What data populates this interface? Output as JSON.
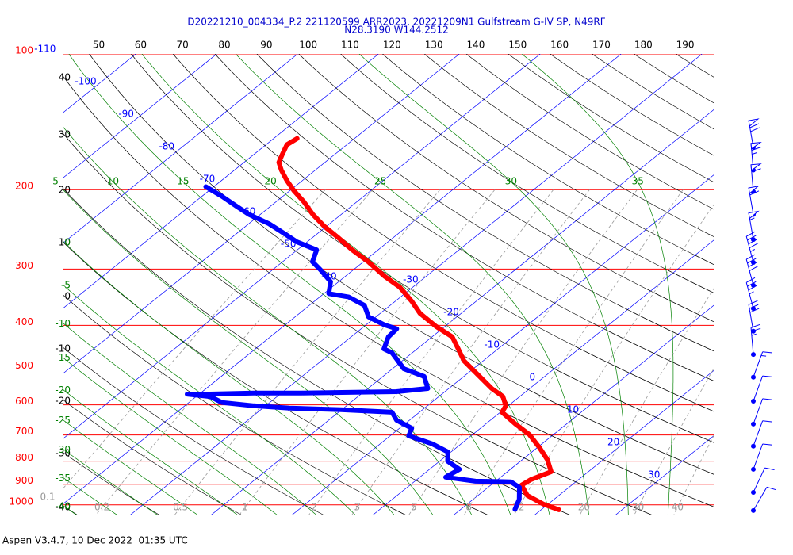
{
  "chart_data": {
    "type": "skewt",
    "title": "D20221210_004334_P.2 221120599 ARR2023, 20221209N1 Gulfstream G-IV SP, N49RF",
    "subtitle": "N28.3190 W144.2512",
    "footer": "Aspen V3.4.7, 10 Dec 2022  01:35 UTC",
    "ylim": [
      100,
      1055
    ],
    "log_y": true,
    "yticks": [
      100,
      200,
      300,
      400,
      500,
      600,
      700,
      800,
      900,
      1000
    ],
    "grid_color": "#ff0000",
    "xlim": [
      -38.2,
      42.2
    ],
    "isotherms": {
      "color": "#0000ff",
      "values": [
        -110,
        -100,
        -90,
        -80,
        -70,
        -60,
        -50,
        -40,
        -30,
        -20,
        -10,
        0,
        10,
        20,
        30
      ]
    },
    "dry_adiabats": {
      "color": "#000000",
      "top": [
        50,
        60,
        70,
        80,
        90,
        100,
        110,
        120,
        130,
        140,
        150,
        160,
        170,
        180,
        190
      ],
      "left": [
        40,
        30,
        20,
        10,
        0,
        -10,
        -20,
        -30,
        -40
      ]
    },
    "moist_adiabats": {
      "color": "#008000",
      "top": [
        5,
        10,
        15,
        20,
        25,
        30,
        35
      ],
      "left": [
        0,
        -5,
        -10,
        -15,
        -20,
        -25,
        -30,
        -35,
        -40
      ]
    },
    "mixing_ratios": {
      "color": "#999999",
      "values": [
        0.1,
        0.2,
        0.5,
        1,
        2,
        3,
        5,
        8,
        12,
        20,
        30,
        40
      ]
    },
    "series": [
      {
        "color": "#ff0000",
        "pressure": [
          154,
          159,
          167,
          174,
          181,
          191,
          201,
          213,
          227,
          241,
          256,
          272,
          289,
          311,
          329,
          354,
          376,
          402,
          424,
          451,
          479,
          509,
          552,
          575,
          603,
          623,
          662,
          698,
          747,
          794,
          844,
          879,
          904,
          953,
          996,
          1025
        ],
        "values": [
          -67.1,
          -67.4,
          -66.5,
          -65.7,
          -64.2,
          -61.9,
          -59.5,
          -56.5,
          -53.5,
          -50.3,
          -46.7,
          -43.2,
          -39.4,
          -35.2,
          -31.6,
          -27.9,
          -25.1,
          -21.1,
          -17.5,
          -14.9,
          -12.4,
          -9.1,
          -4.7,
          -2.1,
          -0.3,
          0.2,
          3.7,
          7.0,
          10.3,
          13.1,
          15.4,
          14.1,
          13.8,
          16.1,
          19.4,
          22.2
        ]
      },
      {
        "color": "#0000ff",
        "pressure": [
          197,
          207,
          218,
          227,
          238,
          251,
          261,
          272,
          289,
          301,
          320,
          340,
          346,
          361,
          383,
          399,
          407,
          424,
          451,
          460,
          499,
          519,
          552,
          561,
          563,
          565,
          565,
          568,
          568,
          575,
          593,
          603,
          610,
          615,
          623,
          649,
          676,
          703,
          732,
          763,
          800,
          834,
          868,
          886,
          889,
          915,
          972,
          1023
        ],
        "values": [
          -71.0,
          -67.5,
          -64.1,
          -61.4,
          -57.5,
          -53.9,
          -51.3,
          -47.6,
          -46.3,
          -44.1,
          -41.0,
          -39.4,
          -36.4,
          -33.2,
          -30.9,
          -27.7,
          -25.6,
          -25.4,
          -24.1,
          -22.5,
          -18.6,
          -14.9,
          -12.6,
          -16.0,
          -21.8,
          -27.5,
          -33.4,
          -39.2,
          -41.5,
          -38.3,
          -35.9,
          -31.5,
          -26.7,
          -20.1,
          -13.4,
          -11.6,
          -8.5,
          -7.7,
          -3.6,
          -0.4,
          1.0,
          3.7,
          3.2,
          7.5,
          12.0,
          13.9,
          15.7,
          16.7
        ]
      }
    ],
    "winds": {
      "pressure": [
        161,
        181,
        202,
        227,
        258,
        290,
        326,
        367,
        412,
        464,
        521,
        589,
        662,
        741,
        834,
        938,
        1029
      ],
      "direction": [
        350,
        355,
        355,
        350,
        350,
        345,
        345,
        345,
        350,
        355,
        20,
        20,
        20,
        20,
        20,
        25,
        30
      ],
      "speed": [
        70,
        65,
        60,
        60,
        55,
        45,
        40,
        35,
        30,
        25,
        15,
        10,
        10,
        10,
        10,
        10,
        10
      ]
    }
  }
}
